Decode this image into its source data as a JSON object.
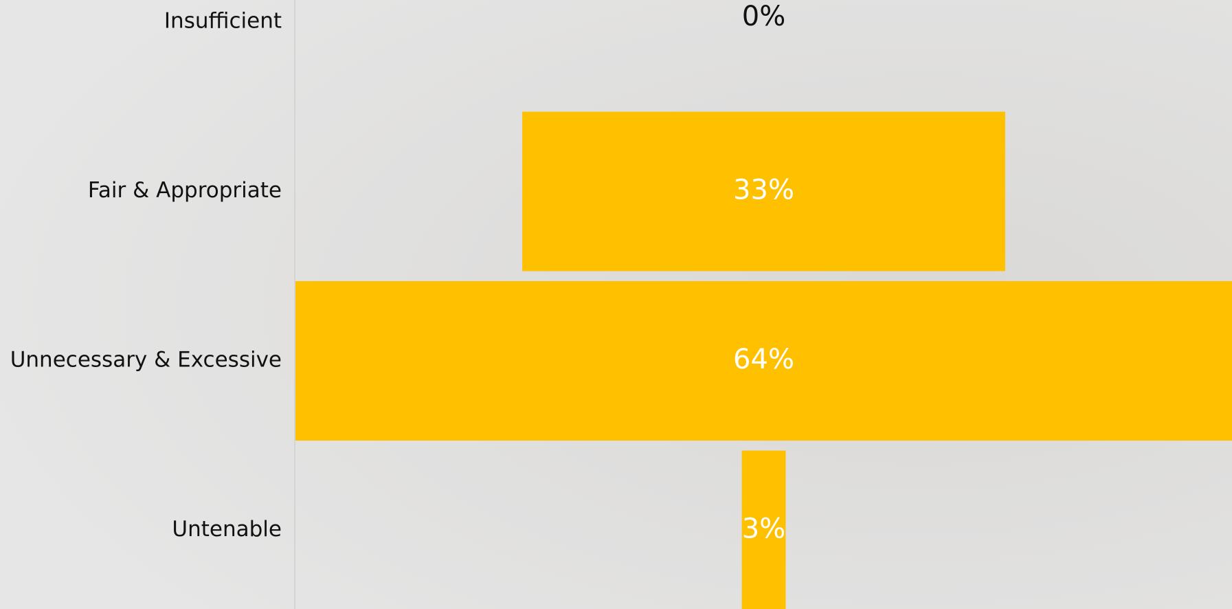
{
  "chart_data": {
    "type": "funnel",
    "categories": [
      "Insufficient",
      "Fair & Appropriate",
      "Unnecessary & Excessive",
      "Untenable"
    ],
    "values": [
      0,
      33,
      64,
      3
    ],
    "value_labels": [
      "0%",
      "33%",
      "64%",
      "3%"
    ],
    "color": "#ffc000"
  }
}
